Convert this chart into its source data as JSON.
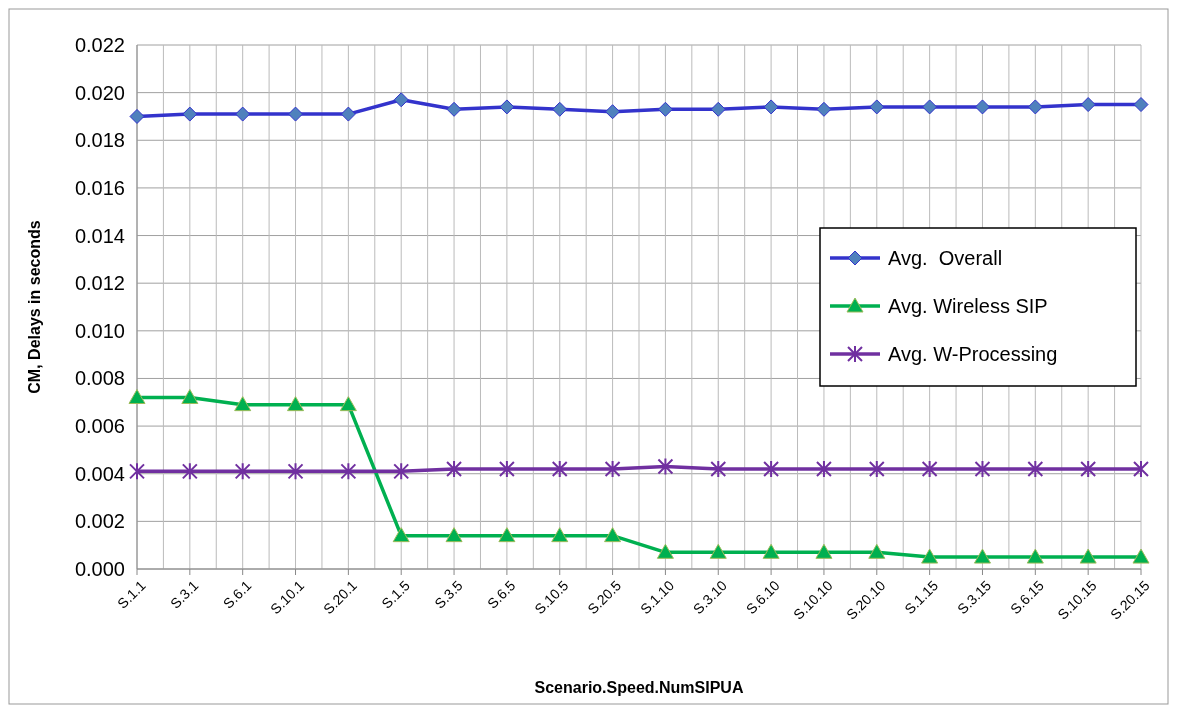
{
  "chart_data": {
    "type": "line",
    "xlabel": "Scenario.Speed.NumSIPUA",
    "ylabel": "CM, Delays in seconds",
    "categories": [
      "S.1.1",
      "S.3.1",
      "S.6.1",
      "S.10.1",
      "S.20.1",
      "S.1.5",
      "S.3.5",
      "S.6.5",
      "S.10.5",
      "S.20.5",
      "S.1.10",
      "S.3.10",
      "S.6.10",
      "S.10.10",
      "S.20.10",
      "S.1.15",
      "S.3.15",
      "S.6.15",
      "S.10.15",
      "S.20.15"
    ],
    "series": [
      {
        "name": "Avg.  Overall",
        "color": "#3333cc",
        "marker": "diamond",
        "values": [
          0.019,
          0.0191,
          0.0191,
          0.0191,
          0.0191,
          0.0197,
          0.0193,
          0.0194,
          0.0193,
          0.0192,
          0.0193,
          0.0193,
          0.0194,
          0.0193,
          0.0194,
          0.0194,
          0.0194,
          0.0194,
          0.0195,
          0.0195
        ]
      },
      {
        "name": "Avg. Wireless SIP",
        "color": "#00b050",
        "marker": "triangle",
        "values": [
          0.0072,
          0.0072,
          0.0069,
          0.0069,
          0.0069,
          0.0014,
          0.0014,
          0.0014,
          0.0014,
          0.0014,
          0.0007,
          0.0007,
          0.0007,
          0.0007,
          0.0007,
          0.0005,
          0.0005,
          0.0005,
          0.0005,
          0.0005
        ]
      },
      {
        "name": "Avg. W-Processing",
        "color": "#7030a0",
        "marker": "cross",
        "values": [
          0.0041,
          0.0041,
          0.0041,
          0.0041,
          0.0041,
          0.0041,
          0.0042,
          0.0042,
          0.0042,
          0.0042,
          0.0043,
          0.0042,
          0.0042,
          0.0042,
          0.0042,
          0.0042,
          0.0042,
          0.0042,
          0.0042,
          0.0042
        ]
      }
    ],
    "ylim": [
      0,
      0.022
    ],
    "yticks": [
      {
        "value": 0,
        "label": "0.000"
      },
      {
        "value": 0.002,
        "label": "0.002"
      },
      {
        "value": 0.004,
        "label": "0.004"
      },
      {
        "value": 0.006,
        "label": "0.006"
      },
      {
        "value": 0.008,
        "label": "0.008"
      },
      {
        "value": 0.01,
        "label": "0.010"
      },
      {
        "value": 0.012,
        "label": "0.012"
      },
      {
        "value": 0.014,
        "label": "0.014"
      },
      {
        "value": 0.016,
        "label": "0.016"
      },
      {
        "value": 0.018,
        "label": "0.018"
      },
      {
        "value": 0.02,
        "label": "0.020"
      },
      {
        "value": 0.022,
        "label": "0.022"
      }
    ],
    "grid": true,
    "legend": "right",
    "line_style": "solid"
  }
}
